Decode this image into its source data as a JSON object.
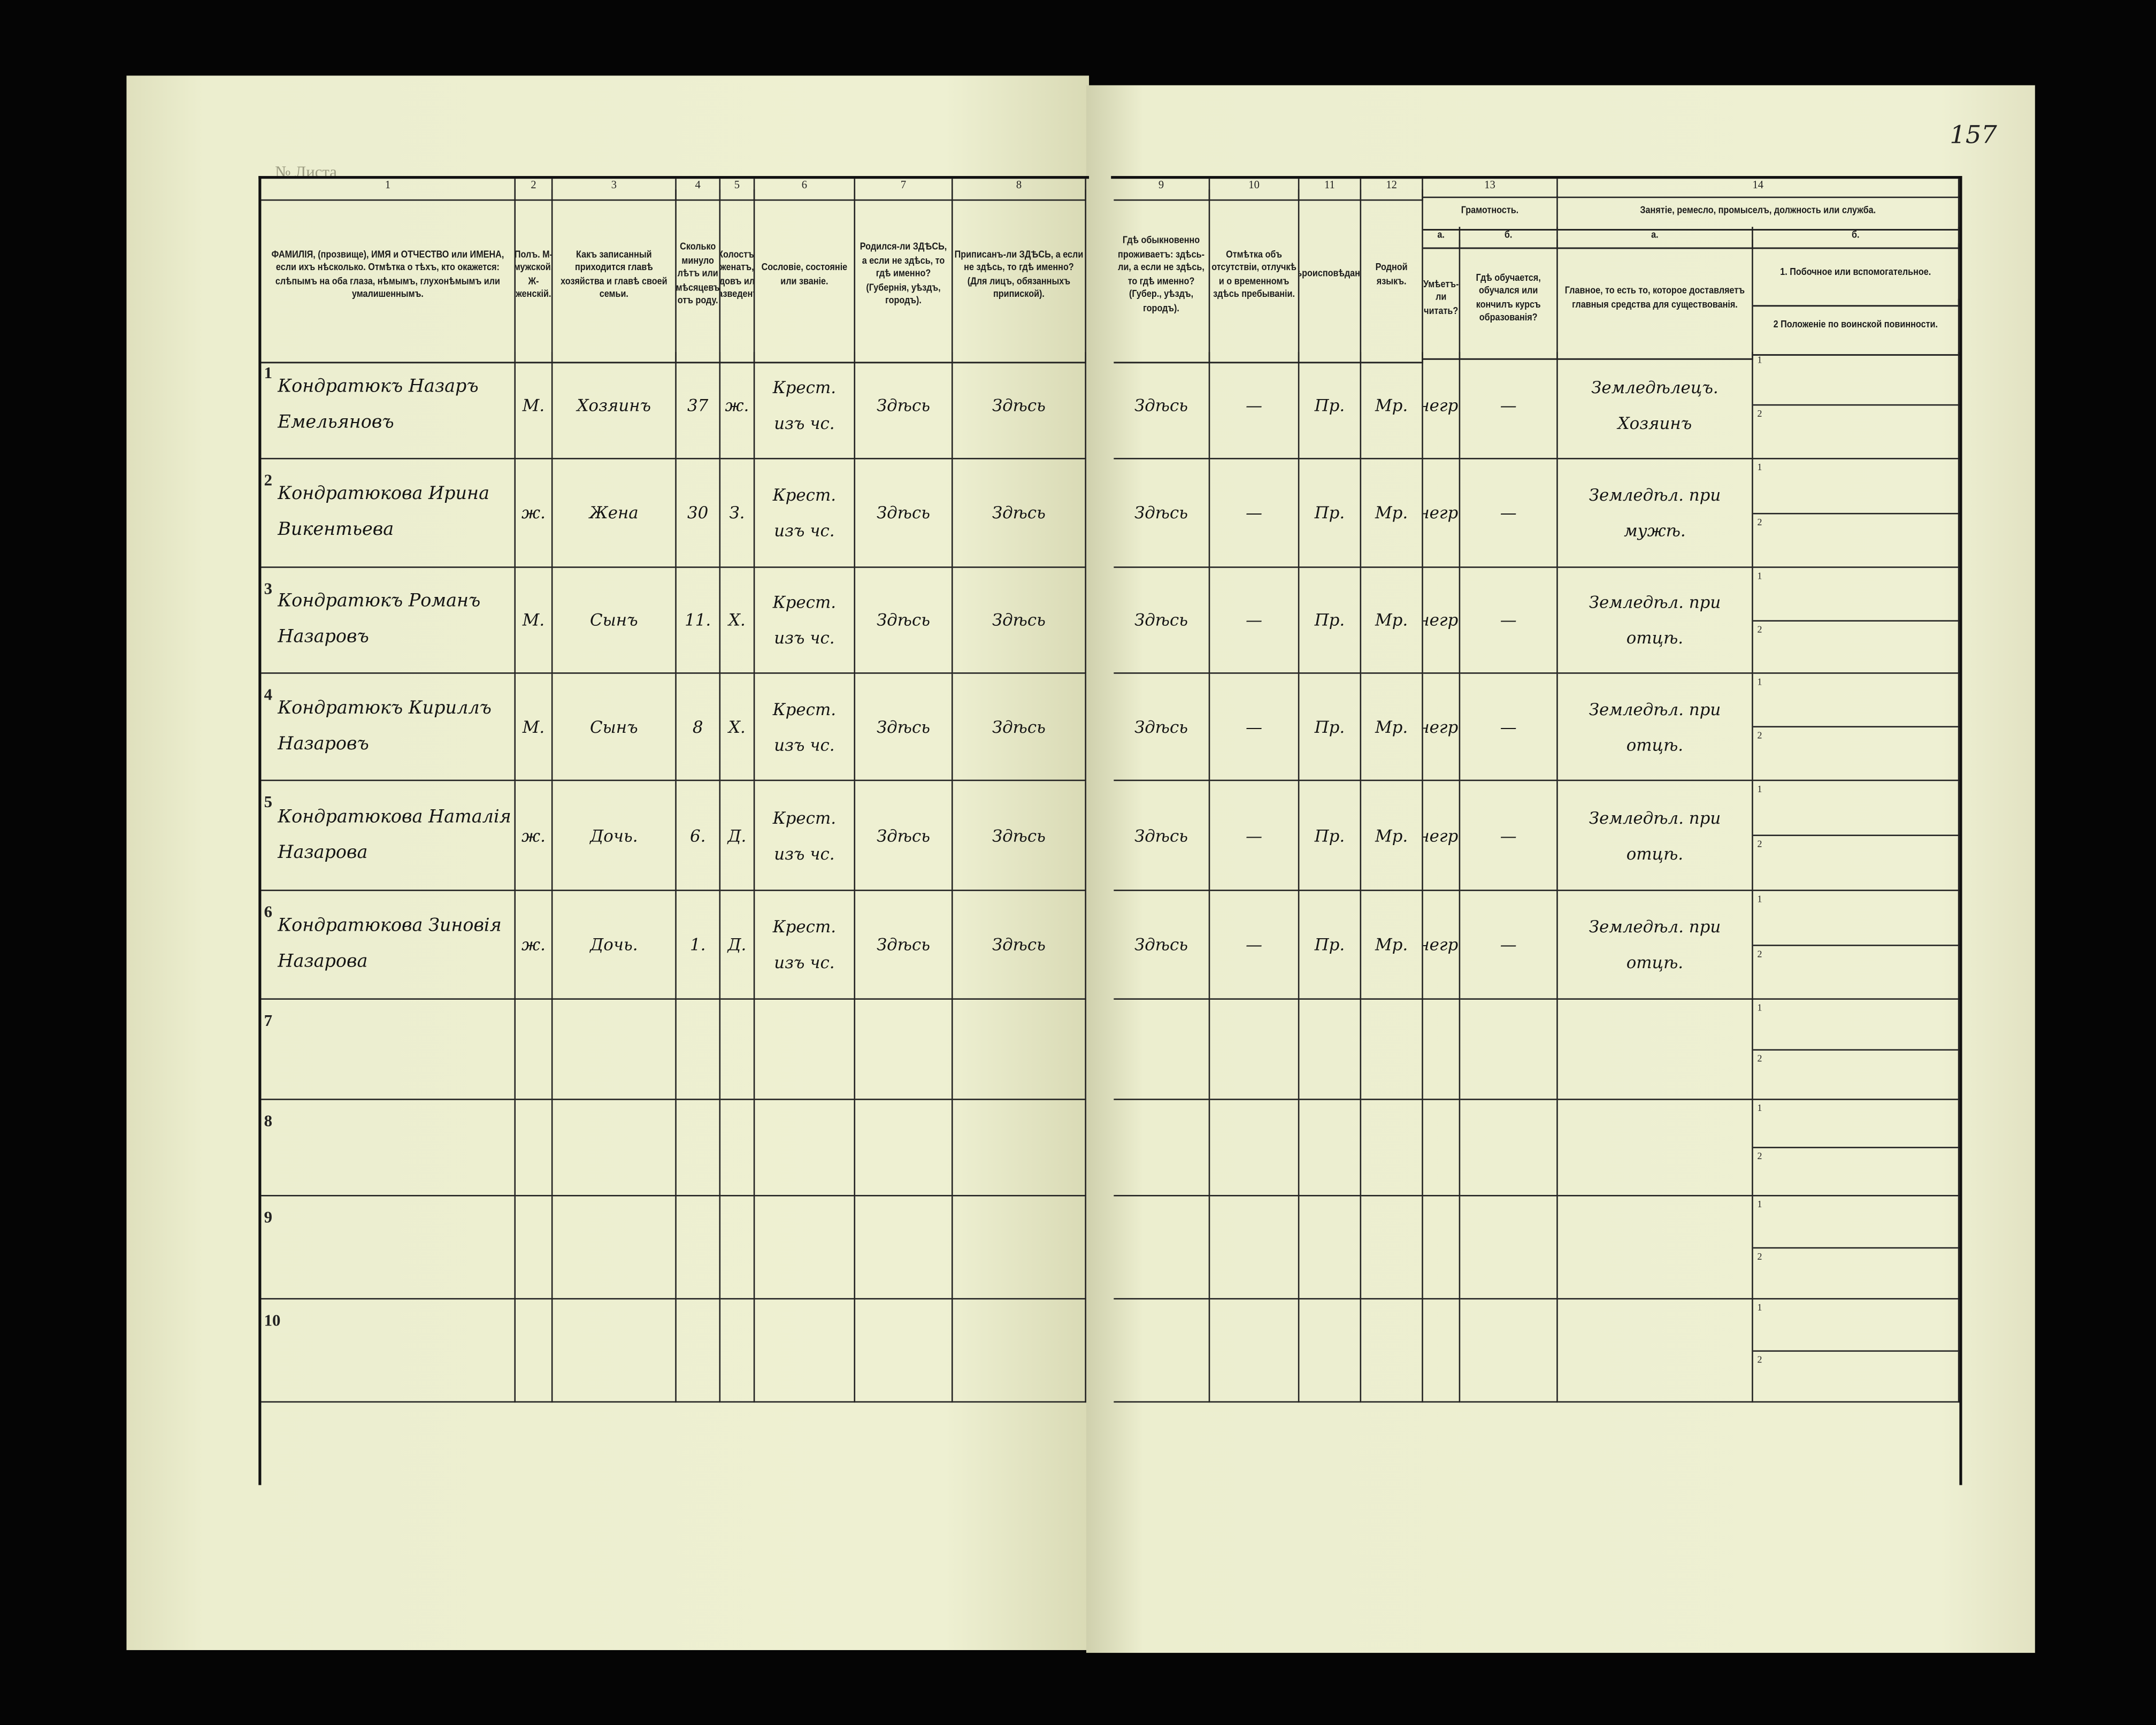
{
  "page_number": "157",
  "sheet_label": "№ Листа",
  "left_headers": [
    {
      "num": "1",
      "text": "ФАМИЛІЯ, (прозвище), ИМЯ и ОТЧЕСТВО или ИМЕНА, если ихъ нѣсколько. Отмѣтка о тѣхъ, кто окажется: слѣпымъ на оба глаза, нѣмымъ, глухонѣмымъ или умалишеннымъ."
    },
    {
      "num": "2",
      "text": "Полъ. М-мужской. Ж-женскій."
    },
    {
      "num": "3",
      "text": "Какъ записанный приходится главѣ хозяйства и главѣ своей семьи."
    },
    {
      "num": "4",
      "text": "Сколько минуло лѣтъ или мѣсяцевъ отъ роду."
    },
    {
      "num": "5",
      "text": "Холостъ, женатъ, вдовъ или разведенъ."
    },
    {
      "num": "6",
      "text": "Сословіе, состояніе или званіе."
    },
    {
      "num": "7",
      "text": "Родился-ли ЗДѢСЬ, а если не здѣсь, то гдѣ именно? (Губернія, уѣздъ, городъ)."
    },
    {
      "num": "8",
      "text": "Приписанъ-ли ЗДѢСЬ, а если не здѣсь, то гдѣ именно? (Для лицъ, обязанныхъ припиской)."
    }
  ],
  "right_headers": {
    "col9": {
      "num": "9",
      "text": "Гдѣ обыкновенно проживаетъ: здѣсь-ли, а если не здѣсь, то гдѣ именно? (Губер., уѣздъ, городъ)."
    },
    "col10": {
      "num": "10",
      "text": "Отмѣтка объ отсутствіи, отлучкѣ и о временномъ здѣсь пребываніи."
    },
    "col11": {
      "num": "11",
      "text": "Вѣроисповѣданіе."
    },
    "col12": {
      "num": "12",
      "text": "Родной языкъ."
    },
    "col13": {
      "num": "13",
      "title": "Грамотность.",
      "a_label": "а.",
      "a_text": "Умѣетъ-ли читать?",
      "b_label": "б.",
      "b_text": "Гдѣ обучается, обучался или кончилъ курсъ образованія?"
    },
    "col14": {
      "num": "14",
      "title": "Занятіе, ремесло, промыселъ, должность или служба.",
      "a_label": "а.",
      "a_text": "Главное, то есть то, которое доставляетъ главныя средства для существованія.",
      "b_label": "б.",
      "b1_text": "1. Побочное или вспомогательное.",
      "b2_text": "2 Положеніе по воинской повинности."
    }
  },
  "sub_labels": [
    "1",
    "2"
  ],
  "rows": [
    {
      "num": "1",
      "name": "Кондратюкъ Назаръ Емельяновъ",
      "sex": "М.",
      "relation": "Хозяинъ",
      "age": "37",
      "marital": "ж.",
      "estate": "Крест. изъ чс.",
      "born": "Здѣсь",
      "registered": "Здѣсь",
      "residence": "Здѣсь",
      "absence": "—",
      "religion": "Пр.",
      "language": "Мр.",
      "literate": "негр.",
      "education": "—",
      "occupation": "Земледѣлецъ. Хозяинъ"
    },
    {
      "num": "2",
      "name": "Кондратюкова Ирина Викентьева",
      "sex": "ж.",
      "relation": "Жена",
      "age": "30",
      "marital": "З.",
      "estate": "Крест. изъ чс.",
      "born": "Здѣсь",
      "registered": "Здѣсь",
      "residence": "Здѣсь",
      "absence": "—",
      "religion": "Пр.",
      "language": "Мр.",
      "literate": "негр.",
      "education": "—",
      "occupation": "Земледѣл. при мужѣ."
    },
    {
      "num": "3",
      "name": "Кондратюкъ Романъ Назаровъ",
      "sex": "М.",
      "relation": "Сынъ",
      "age": "11.",
      "marital": "Х.",
      "estate": "Крест. изъ чс.",
      "born": "Здѣсь",
      "registered": "Здѣсь",
      "residence": "Здѣсь",
      "absence": "—",
      "religion": "Пр.",
      "language": "Мр.",
      "literate": "негр.",
      "education": "—",
      "occupation": "Земледѣл. при отцѣ."
    },
    {
      "num": "4",
      "name": "Кондратюкъ Кириллъ Назаровъ",
      "sex": "М.",
      "relation": "Сынъ",
      "age": "8",
      "marital": "Х.",
      "estate": "Крест. изъ чс.",
      "born": "Здѣсь",
      "registered": "Здѣсь",
      "residence": "Здѣсь",
      "absence": "—",
      "religion": "Пр.",
      "language": "Мр.",
      "literate": "негр.",
      "education": "—",
      "occupation": "Земледѣл. при отцѣ."
    },
    {
      "num": "5",
      "name": "Кондратюкова Наталія Назарова",
      "sex": "ж.",
      "relation": "Дочь.",
      "age": "6.",
      "marital": "Д.",
      "estate": "Крест. изъ чс.",
      "born": "Здѣсь",
      "registered": "Здѣсь",
      "residence": "Здѣсь",
      "absence": "—",
      "religion": "Пр.",
      "language": "Мр.",
      "literate": "негр.",
      "education": "—",
      "occupation": "Земледѣл. при отцѣ."
    },
    {
      "num": "6",
      "name": "Кондратюкова Зиновія Назарова",
      "sex": "ж.",
      "relation": "Дочь.",
      "age": "1.",
      "marital": "Д.",
      "estate": "Крест. изъ чс.",
      "born": "Здѣсь",
      "registered": "Здѣсь",
      "residence": "Здѣсь",
      "absence": "—",
      "religion": "Пр.",
      "language": "Мр.",
      "literate": "негр.",
      "education": "—",
      "occupation": "Земледѣл. при отцѣ."
    },
    {
      "num": "7"
    },
    {
      "num": "8"
    },
    {
      "num": "9"
    },
    {
      "num": "10"
    }
  ]
}
